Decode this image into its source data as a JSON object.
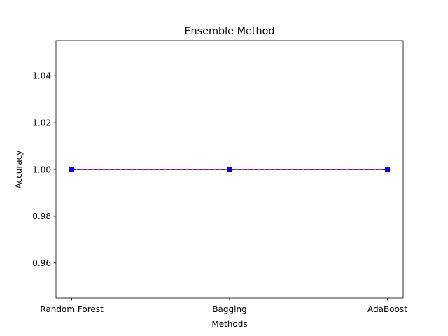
{
  "chart_data": {
    "type": "line",
    "title": "Ensemble Method",
    "xlabel": "Methods",
    "ylabel": "Accuracy",
    "categories": [
      "Random Forest",
      "Bagging",
      "AdaBoost"
    ],
    "ylim": [
      0.945,
      1.055
    ],
    "yticks": [
      0.96,
      0.98,
      1.0,
      1.02,
      1.04
    ],
    "ytick_labels": [
      "0.96",
      "0.98",
      "1.00",
      "1.02",
      "1.04"
    ],
    "grid": false,
    "series": [
      {
        "values": [
          1.0,
          1.0,
          1.0
        ],
        "color": "#ff0000",
        "marker": "circle",
        "line_style": "solid"
      },
      {
        "values": [
          1.0,
          1.0,
          1.0
        ],
        "color": "#0000ff",
        "marker": "square",
        "line_style": "dashed"
      }
    ]
  }
}
